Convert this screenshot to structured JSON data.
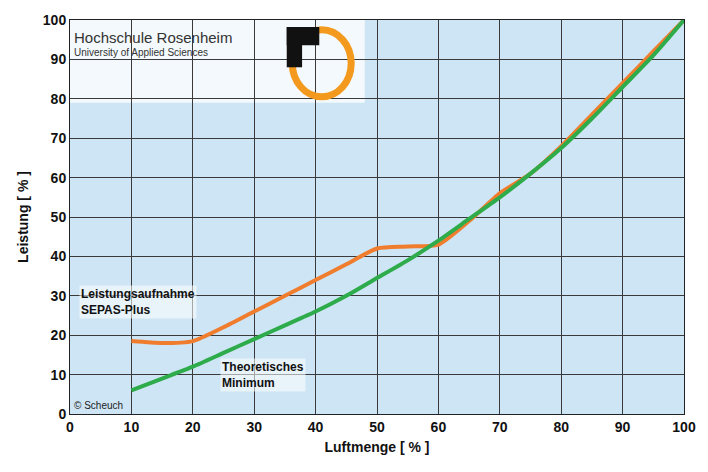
{
  "chart_data": {
    "type": "line",
    "x_label": "Luftmenge [ % ]",
    "y_label": "Leistung [ % ]",
    "x": [
      10,
      15,
      20,
      25,
      30,
      35,
      40,
      45,
      50,
      55,
      60,
      65,
      70,
      75,
      80,
      85,
      90,
      95,
      100
    ],
    "series": [
      {
        "name": "Leistungsaufnahme SEPAS-Plus",
        "color": "#f07d2e",
        "values": [
          18.5,
          18,
          18.5,
          22,
          26,
          30,
          34,
          38,
          42,
          42.5,
          43,
          49,
          56,
          61,
          68,
          76,
          84,
          92,
          100
        ]
      },
      {
        "name": "Theoretisches Minimum",
        "color": "#2eab4a",
        "values": [
          6,
          9,
          12,
          15.5,
          19,
          22.5,
          26,
          30,
          34.5,
          39,
          44,
          49.5,
          55,
          61,
          67.5,
          75,
          83,
          91,
          100
        ]
      }
    ],
    "xlim": [
      0,
      100
    ],
    "xticks": [
      0,
      10,
      20,
      30,
      40,
      50,
      60,
      70,
      80,
      90,
      100
    ],
    "ylim": [
      0,
      100
    ],
    "yticks": [
      0,
      10,
      20,
      30,
      40,
      50,
      60,
      70,
      80,
      90,
      100
    ],
    "grid": true,
    "annotations": [
      "Hochschule Rosenheim",
      "University of Applied Sciences",
      "© Scheuch"
    ]
  }
}
